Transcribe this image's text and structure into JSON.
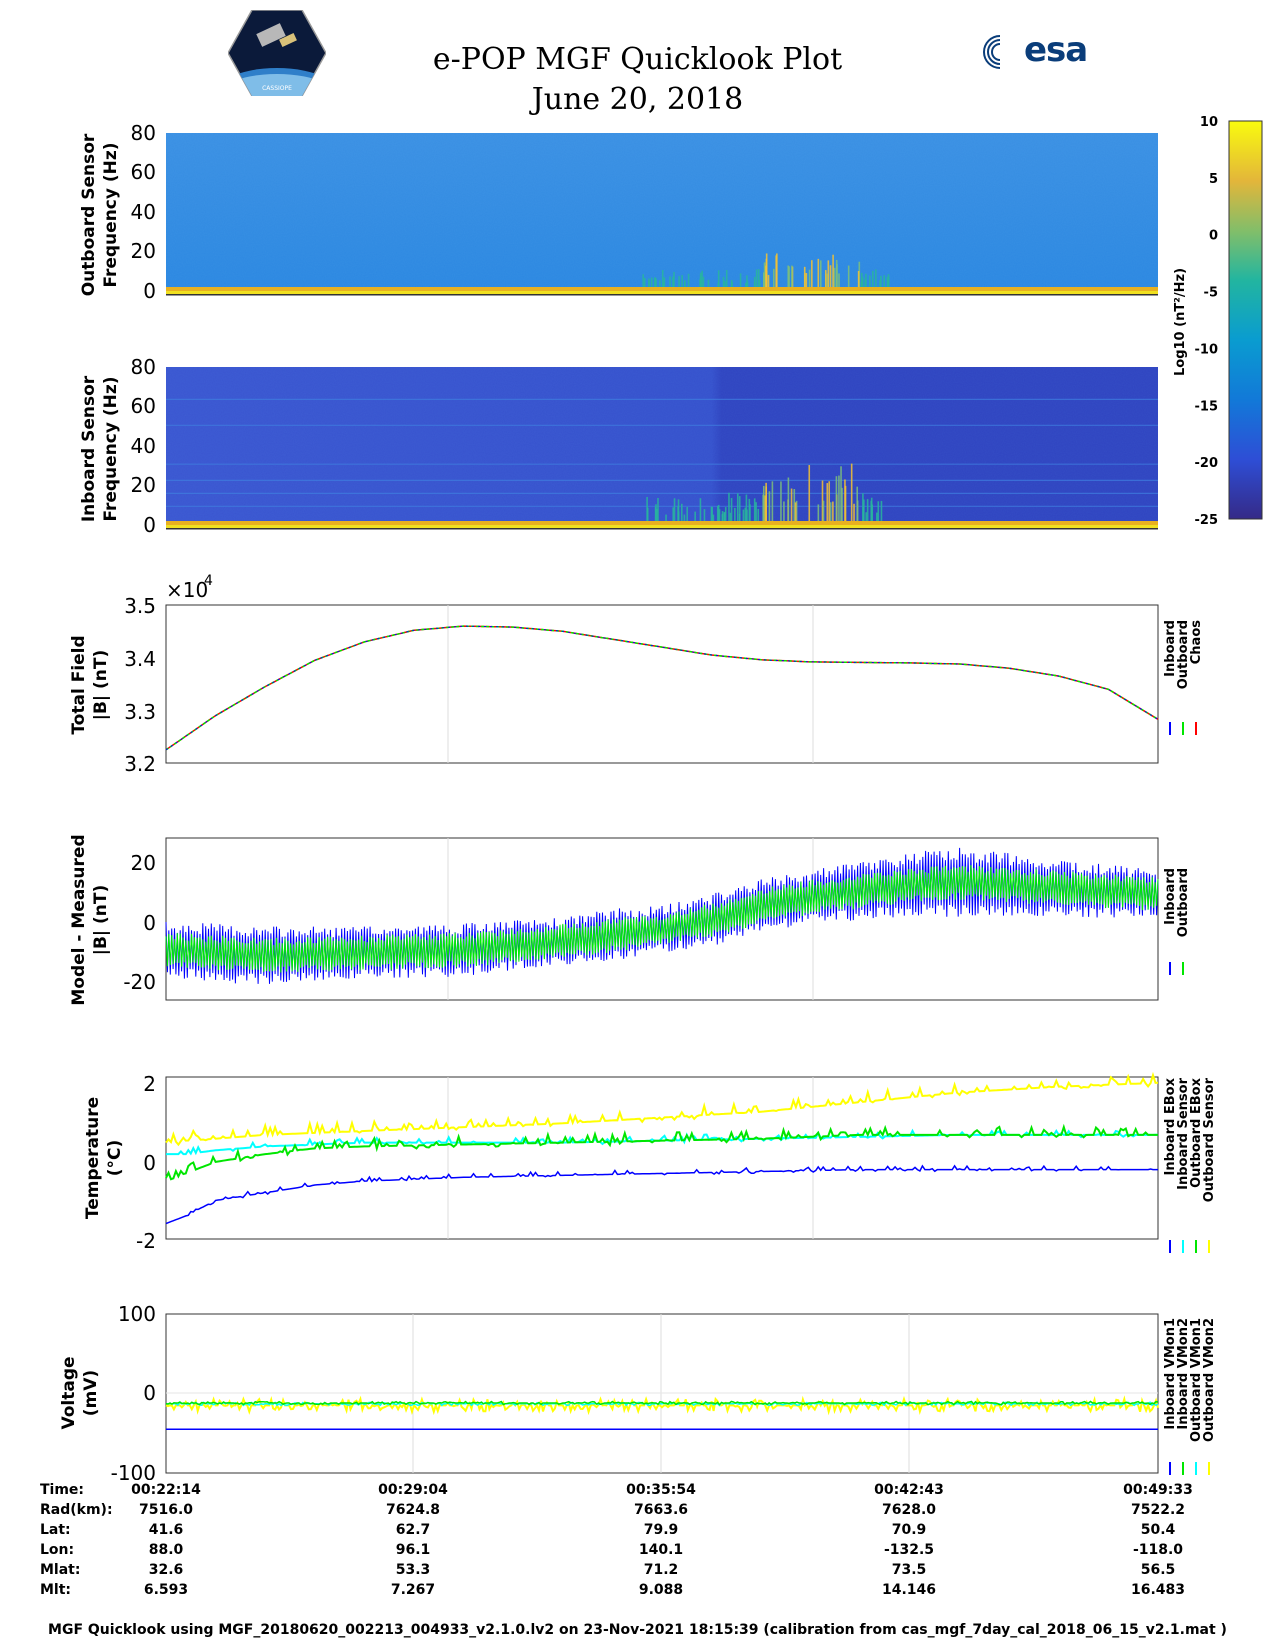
{
  "header": {
    "title": "e-POP MGF Quicklook Plot",
    "date": "June 20, 2018",
    "mission_logo_text": "CASSIOPE",
    "agency_logo_text": "esa"
  },
  "colors": {
    "inboard": "#0000ff",
    "outboard": "#00e600",
    "chaos": "#ff0000",
    "inboard_sensor": "#00ffff",
    "outboard_sensor": "#ffff00",
    "grid": "#dddddd"
  },
  "colorbar": {
    "label": "Log10 (nT²/Hz)",
    "ticks": [
      "10",
      "5",
      "0",
      "-5",
      "-10",
      "-15",
      "-20",
      "-25"
    ]
  },
  "chart_data": [
    {
      "type": "heatmap",
      "name": "outboard-spectrogram",
      "ylabel": [
        "Outboard Sensor",
        "Frequency (Hz)"
      ],
      "yticks": [
        "80",
        "60",
        "40",
        "20",
        "0"
      ],
      "ylim": [
        0,
        80
      ]
    },
    {
      "type": "heatmap",
      "name": "inboard-spectrogram",
      "ylabel": [
        "Inboard Sensor",
        "Frequency (Hz)"
      ],
      "yticks": [
        "80",
        "60",
        "40",
        "20",
        "0"
      ],
      "ylim": [
        0,
        80
      ]
    },
    {
      "type": "line",
      "name": "total-field",
      "ylabel": [
        "Total Field",
        "|B| (nT)"
      ],
      "multiplier": "×10",
      "multiplier_exp": "4",
      "yticks": [
        "3.5",
        "3.4",
        "3.3",
        "3.2"
      ],
      "ylim": [
        3.2,
        3.5
      ],
      "legend": [
        "Inboard",
        "Outboard",
        "Chaos"
      ],
      "x": [
        0,
        0.05,
        0.1,
        0.15,
        0.2,
        0.25,
        0.3,
        0.35,
        0.4,
        0.45,
        0.5,
        0.55,
        0.6,
        0.65,
        0.7,
        0.75,
        0.8,
        0.85,
        0.9,
        0.95,
        1.0
      ],
      "y": [
        3.225,
        3.29,
        3.345,
        3.395,
        3.43,
        3.452,
        3.46,
        3.458,
        3.45,
        3.435,
        3.42,
        3.405,
        3.396,
        3.392,
        3.391,
        3.39,
        3.388,
        3.38,
        3.365,
        3.34,
        3.283
      ]
    },
    {
      "type": "line",
      "name": "model-minus-measured",
      "ylabel": [
        "Model - Measured",
        "|B| (nT)"
      ],
      "yticks": [
        "20",
        "0",
        "-20"
      ],
      "ylim": [
        -25,
        30
      ],
      "legend": [
        "Inboard",
        "Outboard"
      ],
      "x": [
        0,
        0.1,
        0.2,
        0.3,
        0.4,
        0.45,
        0.5,
        0.55,
        0.6,
        0.65,
        0.7,
        0.75,
        0.8,
        0.85,
        0.9,
        0.95,
        1.0
      ],
      "y": [
        -8,
        -10,
        -9,
        -8,
        -5,
        -3,
        -1,
        2,
        7,
        10,
        12,
        14,
        15,
        14,
        13,
        12,
        11
      ],
      "inboard_amplitude": [
        10,
        10,
        9,
        9,
        8,
        9,
        8,
        9,
        9,
        9,
        10,
        11,
        12,
        11,
        10,
        9,
        8
      ],
      "outboard_amplitude": [
        6,
        6,
        6,
        6,
        6,
        6,
        5,
        6,
        6,
        6,
        6,
        6,
        6,
        6,
        6,
        6,
        6
      ]
    },
    {
      "type": "line",
      "name": "temperature",
      "ylabel": [
        "Temperature",
        "(°C)"
      ],
      "yticks": [
        "2",
        "0",
        "-2"
      ],
      "ylim": [
        -2,
        2.2
      ],
      "legend": [
        "Inboard EBox",
        "Inboard Sensor",
        "Outboard EBox",
        "Outboard Sensor"
      ],
      "x": [
        0,
        0.02,
        0.05,
        0.1,
        0.15,
        0.2,
        0.3,
        0.4,
        0.5,
        0.6,
        0.7,
        0.8,
        0.9,
        1.0
      ],
      "inboard_ebox": [
        -1.6,
        -1.4,
        -1.0,
        -0.8,
        -0.6,
        -0.5,
        -0.4,
        -0.35,
        -0.3,
        -0.25,
        -0.2,
        -0.2,
        -0.2,
        -0.2
      ],
      "inboard_sensor": [
        0.2,
        0.2,
        0.3,
        0.4,
        0.45,
        0.5,
        0.5,
        0.5,
        0.55,
        0.6,
        0.65,
        0.7,
        0.7,
        0.7
      ],
      "outboard_ebox": [
        -0.5,
        -0.3,
        0.0,
        0.2,
        0.35,
        0.4,
        0.45,
        0.5,
        0.55,
        0.6,
        0.7,
        0.7,
        0.7,
        0.7
      ],
      "outboard_sensor": [
        0.5,
        0.55,
        0.6,
        0.7,
        0.75,
        0.8,
        0.9,
        1.0,
        1.15,
        1.3,
        1.55,
        1.8,
        1.95,
        2.05
      ]
    },
    {
      "type": "line",
      "name": "voltage",
      "ylabel": [
        "Voltage",
        "(mV)"
      ],
      "yticks": [
        "100",
        "0",
        "-100"
      ],
      "ylim": [
        -100,
        100
      ],
      "legend": [
        "Inboard VMon1",
        "Inboard VMon2",
        "Outboard VMon1",
        "Outboard VMon2"
      ],
      "inboard_vmon1": -45,
      "inboard_vmon2": -12,
      "outboard_vmon1": -13,
      "outboard_vmon2": -15
    }
  ],
  "time_table": {
    "rows": [
      {
        "label": "Time:",
        "values": [
          "00:22:14",
          "00:29:04",
          "00:35:54",
          "00:42:43",
          "00:49:33"
        ]
      },
      {
        "label": "Rad(km):",
        "values": [
          "7516.0",
          "7624.8",
          "7663.6",
          "7628.0",
          "7522.2"
        ]
      },
      {
        "label": "Lat:",
        "values": [
          "41.6",
          "62.7",
          "79.9",
          "70.9",
          "50.4"
        ]
      },
      {
        "label": "Lon:",
        "values": [
          "88.0",
          "96.1",
          "140.1",
          "-132.5",
          "-118.0"
        ]
      },
      {
        "label": "Mlat:",
        "values": [
          "32.6",
          "53.3",
          "71.2",
          "73.5",
          "56.5"
        ]
      },
      {
        "label": "Mlt:",
        "values": [
          "6.593",
          "7.267",
          "9.088",
          "14.146",
          "16.483"
        ]
      }
    ]
  },
  "footer": "MGF Quicklook using MGF_20180620_002213_004933_v2.1.0.lv2 on 23-Nov-2021 18:15:39 (calibration from cas_mgf_7day_cal_2018_06_15_v2.1.mat )"
}
